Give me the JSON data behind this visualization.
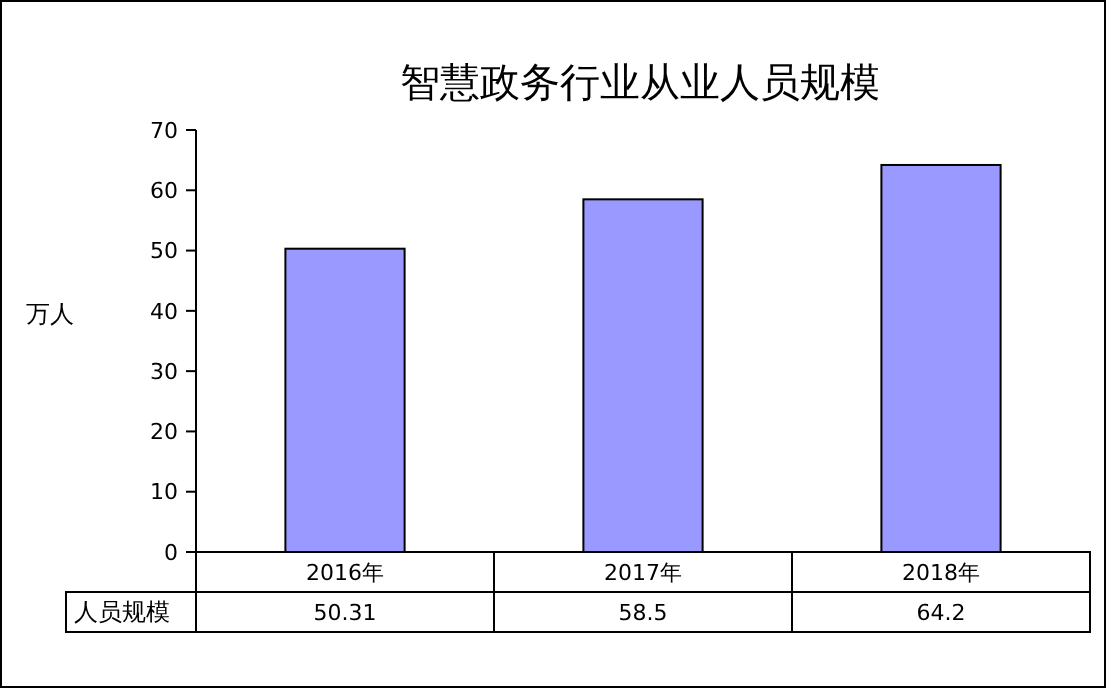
{
  "chart_data": {
    "type": "bar",
    "title": "智慧政务行业从业人员规模",
    "ylabel": "万人",
    "categories": [
      "2016年",
      "2017年",
      "2018年"
    ],
    "series": [
      {
        "name": "人员规模",
        "color": "#9999ff",
        "values": [
          50.31,
          58.5,
          64.2
        ]
      }
    ],
    "ylim": [
      0,
      70
    ],
    "yticks": [
      0,
      10,
      20,
      30,
      40,
      50,
      60,
      70
    ],
    "data_labels": true,
    "grid": false,
    "legend": false
  }
}
